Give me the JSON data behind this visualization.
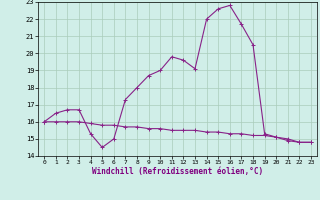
{
  "xlabel": "Windchill (Refroidissement éolien,°C)",
  "xlim": [
    -0.5,
    23.5
  ],
  "ylim": [
    14,
    23
  ],
  "yticks": [
    14,
    15,
    16,
    17,
    18,
    19,
    20,
    21,
    22,
    23
  ],
  "xticks": [
    0,
    1,
    2,
    3,
    4,
    5,
    6,
    7,
    8,
    9,
    10,
    11,
    12,
    13,
    14,
    15,
    16,
    17,
    18,
    19,
    20,
    21,
    22,
    23
  ],
  "background_color": "#d0eee8",
  "grid_color": "#aaccbb",
  "line_color": "#882288",
  "line1_x": [
    0,
    1,
    2,
    3,
    4,
    5,
    6,
    7,
    8,
    9,
    10,
    11,
    12,
    13,
    14,
    15,
    16,
    17,
    18,
    19,
    20,
    21,
    22,
    23
  ],
  "line1_y": [
    16.0,
    16.5,
    16.7,
    16.7,
    15.3,
    14.5,
    15.0,
    17.3,
    18.0,
    18.7,
    19.0,
    19.8,
    19.6,
    19.1,
    22.0,
    22.6,
    22.8,
    21.7,
    20.5,
    15.3,
    15.1,
    15.0,
    14.8,
    14.8
  ],
  "line2_x": [
    0,
    1,
    2,
    3,
    4,
    5,
    6,
    7,
    8,
    9,
    10,
    11,
    12,
    13,
    14,
    15,
    16,
    17,
    18,
    19,
    20,
    21,
    22,
    23
  ],
  "line2_y": [
    16.0,
    16.0,
    16.0,
    16.0,
    15.9,
    15.8,
    15.8,
    15.7,
    15.7,
    15.6,
    15.6,
    15.5,
    15.5,
    15.5,
    15.4,
    15.4,
    15.3,
    15.3,
    15.2,
    15.2,
    15.1,
    14.9,
    14.8,
    14.8
  ]
}
